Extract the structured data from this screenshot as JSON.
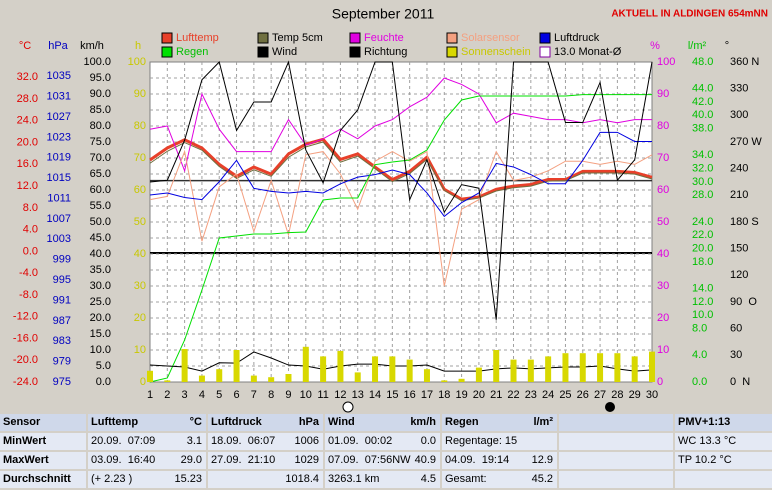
{
  "chart_data": {
    "type": "line",
    "title": "September 2011",
    "subtitle": "AKTUELL IN ALDINGEN 654mNN",
    "categories": [
      "1",
      "2",
      "3",
      "4",
      "5",
      "6",
      "7",
      "8",
      "9",
      "10",
      "11",
      "12",
      "13",
      "14",
      "15",
      "16",
      "17",
      "18",
      "19",
      "20",
      "21",
      "22",
      "23",
      "24",
      "25",
      "26",
      "27",
      "28",
      "29",
      "30"
    ],
    "ylabel": "°C",
    "ylim": [
      -24,
      34.8
    ],
    "yticks": [
      {
        "value": 32,
        "label": "32.0"
      },
      {
        "value": 28,
        "label": "28.0"
      },
      {
        "value": 24,
        "label": "24.0"
      },
      {
        "value": 20,
        "label": "20.0"
      },
      {
        "value": 16,
        "label": "16.0"
      },
      {
        "value": 12,
        "label": "12.0"
      },
      {
        "value": 8,
        "label": "8.0"
      },
      {
        "value": 4,
        "label": "4.0"
      },
      {
        "value": 0,
        "label": "0.0"
      },
      {
        "value": -4,
        "label": "-4.0"
      },
      {
        "value": -8,
        "label": "-8.0"
      },
      {
        "value": -12,
        "label": "-12.0"
      },
      {
        "value": -16,
        "label": "-16.0"
      },
      {
        "value": -20,
        "label": "-20.0"
      },
      {
        "value": -24,
        "label": "-24.0"
      }
    ],
    "y2label": "hPa",
    "y2lim": [
      975,
      1037.8
    ],
    "y2ticks": [
      1035,
      1031,
      1027,
      1023,
      1019,
      1015,
      1011,
      1007,
      1003,
      999,
      995,
      991,
      987,
      983,
      979,
      975
    ],
    "y3label": "km/h",
    "y3lim": [
      0,
      100
    ],
    "y3ticks": [
      {
        "value": 100,
        "label": "100.0"
      },
      {
        "value": 95,
        "label": "95.0"
      },
      {
        "value": 90,
        "label": "90.0"
      },
      {
        "value": 85,
        "label": "85.0"
      },
      {
        "value": 80,
        "label": "80.0"
      },
      {
        "value": 75,
        "label": "75.0"
      },
      {
        "value": 70,
        "label": "70.0"
      },
      {
        "value": 65,
        "label": "65.0"
      },
      {
        "value": 60,
        "label": "60.0"
      },
      {
        "value": 55,
        "label": "55.0"
      },
      {
        "value": 50,
        "label": "50.0"
      },
      {
        "value": 45,
        "label": "45.0"
      },
      {
        "value": 40,
        "label": "40.0"
      },
      {
        "value": 35,
        "label": "35.0"
      },
      {
        "value": 30,
        "label": "30.0"
      },
      {
        "value": 25,
        "label": "25.0"
      },
      {
        "value": 20,
        "label": "20.0"
      },
      {
        "value": 15,
        "label": "15.0"
      },
      {
        "value": 10,
        "label": "10.0"
      },
      {
        "value": 5,
        "label": "5.0"
      },
      {
        "value": 0,
        "label": "0.0"
      }
    ],
    "y4label": "h",
    "y4lim": [
      0,
      100
    ],
    "y4ticks": [
      100,
      90,
      80,
      70,
      60,
      50,
      40,
      30,
      20,
      10,
      0
    ],
    "y5label": "%",
    "y5lim": [
      0,
      100
    ],
    "y5ticks": [
      100,
      90,
      80,
      70,
      60,
      50,
      40,
      30,
      20,
      10,
      0
    ],
    "y6label": "l/m²",
    "y6lim": [
      0,
      48
    ],
    "y6ticks": [
      {
        "value": 48,
        "label": "48.0"
      },
      {
        "value": 44,
        "label": "44.0"
      },
      {
        "value": 42,
        "label": "42.0"
      },
      {
        "value": 40,
        "label": "40.0"
      },
      {
        "value": 38,
        "label": "38.0"
      },
      {
        "value": 34,
        "label": "34.0"
      },
      {
        "value": 32,
        "label": "32.0"
      },
      {
        "value": 30,
        "label": "30.0"
      },
      {
        "value": 28,
        "label": "28.0"
      },
      {
        "value": 24,
        "label": "24.0"
      },
      {
        "value": 22,
        "label": "22.0"
      },
      {
        "value": 20,
        "label": "20.0"
      },
      {
        "value": 18,
        "label": "18.0"
      },
      {
        "value": 14,
        "label": "14.0"
      },
      {
        "value": 12,
        "label": "12.0"
      },
      {
        "value": 10,
        "label": "10.0"
      },
      {
        "value": 8,
        "label": "8.0"
      },
      {
        "value": 4,
        "label": "4.0"
      },
      {
        "value": 0,
        "label": "0.0"
      }
    ],
    "y7label": "°",
    "y7lim": [
      0,
      360
    ],
    "y7ticks": [
      {
        "value": 360,
        "label": "360 N"
      },
      330,
      300,
      {
        "value": 270,
        "label": "270 W"
      },
      240,
      210,
      {
        "value": 180,
        "label": "180 S"
      },
      150,
      120,
      {
        "value": 90,
        "label": "90  O"
      },
      60,
      30,
      {
        "value": 0,
        "label": "0  N"
      }
    ],
    "grid": true,
    "series": [
      {
        "name": "Lufttemp",
        "color": "#e8402a",
        "axis": "y",
        "values": [
          16.8,
          19,
          20.5,
          19,
          16,
          13.8,
          15.5,
          14.2,
          17.9,
          19.7,
          20.6,
          16.9,
          17.9,
          15.5,
          13.2,
          14.7,
          17.3,
          11.4,
          9.6,
          10,
          11.4,
          12,
          12.3,
          13.2,
          13.2,
          14.7,
          14.7,
          14.7,
          14.5,
          13.6
        ]
      },
      {
        "name": "Temp 5cm",
        "color": "#707040",
        "axis": "y",
        "values": [
          16.2,
          18.4,
          20,
          18.6,
          15.6,
          13.4,
          15,
          13.8,
          17.3,
          19.2,
          20.1,
          16.4,
          17.5,
          15.2,
          12.8,
          14.3,
          16.9,
          11.2,
          9.3,
          9.8,
          11.1,
          11.7,
          12,
          12.9,
          13,
          14.4,
          14.4,
          14.4,
          14.2,
          13.3
        ]
      },
      {
        "name": "Feuchte",
        "color": "#e000e0",
        "axis": "y5",
        "values": [
          79,
          80,
          66,
          90,
          79,
          72,
          72,
          72,
          82,
          74,
          76,
          79,
          76,
          80,
          82,
          86,
          89,
          95,
          93,
          90,
          81,
          84,
          83,
          82,
          82,
          81,
          82,
          81,
          82,
          82
        ]
      },
      {
        "name": "Solarsensor",
        "color": "#f4a080",
        "axis": "y5",
        "values": [
          57,
          58,
          72,
          44,
          61,
          65,
          47,
          63,
          46,
          71,
          72,
          65,
          54,
          69,
          72,
          69,
          72,
          30,
          54,
          57,
          72,
          63,
          64,
          66,
          69,
          69,
          68,
          69,
          68,
          71
        ]
      },
      {
        "name": "Luftdruck",
        "color": "#0000e0",
        "axis": "y2",
        "values": [
          1011.7,
          1012.1,
          1011.2,
          1010.8,
          1014.3,
          1018.5,
          1013,
          1012.4,
          1012.1,
          1012.4,
          1012.1,
          1013.9,
          1015.2,
          1015.7,
          1016.6,
          1015.7,
          1012.1,
          1007.5,
          1010.2,
          1012.1,
          1017.9,
          1017.2,
          1015.7,
          1013.9,
          1013.9,
          1018.5,
          1024,
          1024,
          1022.2,
          1022.2
        ]
      },
      {
        "name": "Regen",
        "color": "#00e000",
        "axis": "y6",
        "values": [
          0,
          0.6,
          6.3,
          13.8,
          21.6,
          21.9,
          22.2,
          22.2,
          22.4,
          22.5,
          27.3,
          27.6,
          27.6,
          32.6,
          33,
          33.3,
          34.8,
          39.3,
          42.3,
          42.9,
          42.9,
          42.9,
          42.9,
          42.9,
          42.9,
          43.1,
          43.1,
          43.1,
          43.1,
          43.1
        ]
      },
      {
        "name": "Wind",
        "color": "#000000",
        "axis": "y3",
        "values": [
          5.3,
          5,
          4.7,
          3.4,
          6,
          5.9,
          9.4,
          7.5,
          5.3,
          5,
          4,
          5,
          5.6,
          5.6,
          5,
          5,
          5.3,
          3.4,
          3.4,
          3.4,
          4.1,
          4.4,
          4.1,
          4.4,
          4.7,
          4.7,
          5,
          4.1,
          3.4,
          3.8
        ]
      },
      {
        "name": "Richtung",
        "color": "#000000",
        "axis": "y7",
        "values": [
          225,
          227,
          272,
          340,
          360,
          283,
          315,
          315,
          360,
          261,
          224,
          283,
          306,
          360,
          360,
          205,
          250,
          191,
          222,
          218,
          70,
          360,
          360,
          360,
          292,
          292,
          337,
          227,
          250,
          360
        ]
      },
      {
        "name": "Sonnenschein",
        "color": "#d8d800",
        "axis": "y4",
        "type": "bar",
        "values": [
          3.5,
          0.5,
          10.3,
          2,
          4,
          10,
          2,
          1.5,
          2.5,
          11,
          8,
          9.7,
          3,
          8,
          8,
          7,
          4,
          0.5,
          1,
          4.5,
          10,
          7,
          7,
          8,
          9,
          9,
          9,
          9,
          8,
          9.5
        ]
      }
    ],
    "reference_line": {
      "name": "13.0 Monat-Ø",
      "value": 13,
      "axis": "y",
      "color": "#8000a0"
    }
  },
  "table": {
    "header": {
      "sensor": "Sensor",
      "groups": [
        {
          "name": "Lufttemp",
          "unit": "°C"
        },
        {
          "name": "Luftdruck",
          "unit": "hPa"
        },
        {
          "name": "Wind",
          "unit": "km/h"
        },
        {
          "name": "Regen",
          "unit": "l/m²"
        }
      ],
      "extra": "PMV+1:13"
    },
    "rows": [
      {
        "label": "MinWert",
        "cells": [
          [
            "20.09.  07:09",
            "3.1"
          ],
          [
            "18.09.  06:07",
            "1006"
          ],
          [
            "01.09.  00:02",
            "0.0"
          ],
          [
            "Regentage: 15"
          ]
        ],
        "extra": "WC 13.3 °C"
      },
      {
        "label": "MaxWert",
        "cells": [
          [
            "03.09.  16:40",
            "29.0"
          ],
          [
            "27.09.  21:10",
            "1029"
          ],
          [
            "07.09.  07:56NW",
            "40.9"
          ],
          [
            "04.09.  19:14",
            "12.9"
          ]
        ],
        "extra": "TP 10.2 °C"
      },
      {
        "label": "Durchschnitt",
        "cells": [
          [
            "(+ 2.23 )",
            "15.23"
          ],
          [
            "1018.4"
          ],
          [
            "3263.1 km",
            "4.5"
          ],
          [
            "Gesamt:",
            "45.2"
          ]
        ]
      }
    ]
  }
}
